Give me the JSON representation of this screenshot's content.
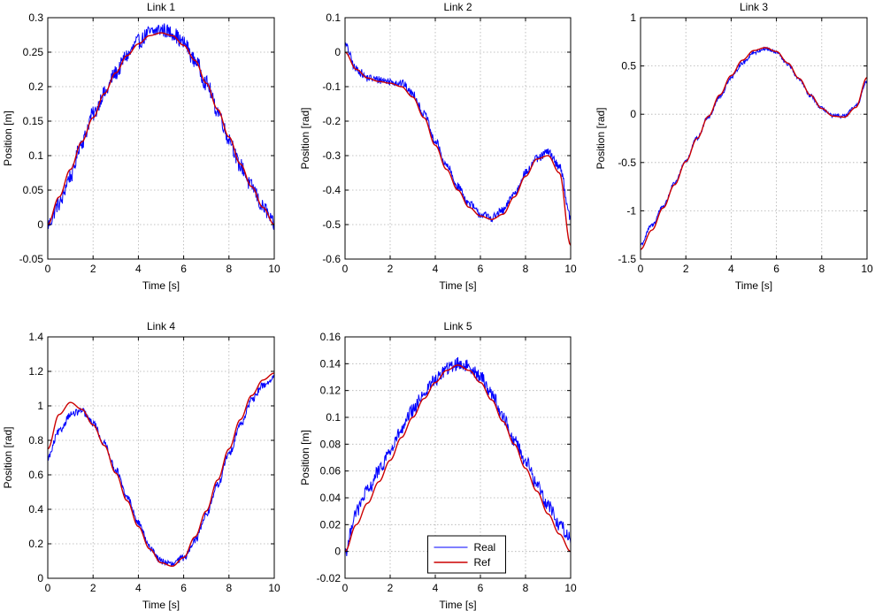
{
  "colors": {
    "real": "#0000ff",
    "ref": "#cc0000",
    "grid": "#b0b0b0"
  },
  "legend": {
    "entries": [
      "Real",
      "Ref"
    ],
    "panel": 4,
    "placement": "bottom-center"
  },
  "chart_data": [
    {
      "type": "line",
      "title": "Link 1",
      "xlabel": "Time [s]",
      "ylabel": "Position [m]",
      "xlim": [
        0,
        10
      ],
      "ylim": [
        -0.05,
        0.3
      ],
      "xticks": [
        0,
        2,
        4,
        6,
        8,
        10
      ],
      "xtick_labels": [
        "0",
        "2",
        "4",
        "6",
        "8",
        "10"
      ],
      "yticks": [
        -0.05,
        0,
        0.05,
        0.1,
        0.15,
        0.2,
        0.25,
        0.3
      ],
      "ytick_labels": [
        "-0.05",
        "0",
        "0.05",
        "0.1",
        "0.15",
        "0.2",
        "0.25",
        "0.3"
      ],
      "grid": true,
      "noise": 0.011,
      "x": [
        0,
        0.5,
        1,
        1.5,
        2,
        2.5,
        3,
        3.5,
        4,
        4.5,
        5,
        5.5,
        6,
        6.5,
        7,
        7.5,
        8,
        8.5,
        9,
        9.5,
        10
      ],
      "series": [
        {
          "name": "Real",
          "values": [
            0.0,
            0.03,
            0.07,
            0.12,
            0.16,
            0.19,
            0.22,
            0.245,
            0.265,
            0.278,
            0.283,
            0.278,
            0.263,
            0.238,
            0.205,
            0.165,
            0.125,
            0.085,
            0.055,
            0.025,
            0.0
          ]
        },
        {
          "name": "Ref",
          "values": [
            0.0,
            0.04,
            0.08,
            0.12,
            0.155,
            0.19,
            0.22,
            0.245,
            0.262,
            0.274,
            0.278,
            0.274,
            0.26,
            0.238,
            0.205,
            0.167,
            0.127,
            0.088,
            0.055,
            0.025,
            0.0
          ]
        }
      ]
    },
    {
      "type": "line",
      "title": "Link 2",
      "xlabel": "Time [s]",
      "ylabel": "Position [rad]",
      "xlim": [
        0,
        10
      ],
      "ylim": [
        -0.6,
        0.1
      ],
      "xticks": [
        0,
        2,
        4,
        6,
        8,
        10
      ],
      "xtick_labels": [
        "0",
        "2",
        "4",
        "6",
        "8",
        "10"
      ],
      "yticks": [
        -0.6,
        -0.5,
        -0.4,
        -0.3,
        -0.2,
        -0.1,
        0,
        0.1
      ],
      "ytick_labels": [
        "-0.6",
        "-0.5",
        "-0.4",
        "-0.3",
        "-0.2",
        "-0.1",
        "0",
        "0.1"
      ],
      "grid": true,
      "noise": 0.012,
      "x": [
        0,
        0.5,
        1,
        1.5,
        2,
        2.5,
        3,
        3.5,
        4,
        4.5,
        5,
        5.5,
        6,
        6.5,
        7,
        7.5,
        8,
        8.5,
        9,
        9.5,
        10
      ],
      "series": [
        {
          "name": "Real",
          "values": [
            0.02,
            -0.05,
            -0.075,
            -0.08,
            -0.085,
            -0.09,
            -0.12,
            -0.18,
            -0.26,
            -0.33,
            -0.39,
            -0.44,
            -0.47,
            -0.48,
            -0.46,
            -0.41,
            -0.35,
            -0.31,
            -0.29,
            -0.33,
            -0.48
          ]
        },
        {
          "name": "Ref",
          "values": [
            0.0,
            -0.05,
            -0.075,
            -0.085,
            -0.09,
            -0.1,
            -0.13,
            -0.19,
            -0.27,
            -0.34,
            -0.4,
            -0.45,
            -0.475,
            -0.485,
            -0.47,
            -0.42,
            -0.36,
            -0.31,
            -0.3,
            -0.35,
            -0.56
          ]
        }
      ]
    },
    {
      "type": "line",
      "title": "Link 3",
      "xlabel": "Time [s]",
      "ylabel": "Position [rad]",
      "xlim": [
        0,
        10
      ],
      "ylim": [
        -1.5,
        1
      ],
      "xticks": [
        0,
        2,
        4,
        6,
        8,
        10
      ],
      "xtick_labels": [
        "0",
        "2",
        "4",
        "6",
        "8",
        "10"
      ],
      "yticks": [
        -1.5,
        -1,
        -0.5,
        0,
        0.5,
        1
      ],
      "ytick_labels": [
        "-1.5",
        "-1",
        "-0.5",
        "0",
        "0.5",
        "1"
      ],
      "grid": true,
      "noise": 0.02,
      "x": [
        0,
        0.5,
        1,
        1.5,
        2,
        2.5,
        3,
        3.5,
        4,
        4.5,
        5,
        5.5,
        6,
        6.5,
        7,
        7.5,
        8,
        8.5,
        9,
        9.5,
        10
      ],
      "series": [
        {
          "name": "Real",
          "values": [
            -1.35,
            -1.15,
            -0.95,
            -0.72,
            -0.48,
            -0.25,
            -0.02,
            0.18,
            0.38,
            0.53,
            0.64,
            0.68,
            0.64,
            0.52,
            0.36,
            0.19,
            0.06,
            -0.02,
            -0.02,
            0.08,
            0.33
          ]
        },
        {
          "name": "Ref",
          "values": [
            -1.4,
            -1.2,
            -0.97,
            -0.73,
            -0.49,
            -0.25,
            -0.02,
            0.2,
            0.4,
            0.56,
            0.66,
            0.69,
            0.65,
            0.53,
            0.37,
            0.2,
            0.06,
            -0.02,
            -0.03,
            0.07,
            0.38
          ]
        }
      ]
    },
    {
      "type": "line",
      "title": "Link 4",
      "xlabel": "Time [s]",
      "ylabel": "Position [rad]",
      "xlim": [
        0,
        10
      ],
      "ylim": [
        0,
        1.4
      ],
      "xticks": [
        0,
        2,
        4,
        6,
        8,
        10
      ],
      "xtick_labels": [
        "0",
        "2",
        "4",
        "6",
        "8",
        "10"
      ],
      "yticks": [
        0,
        0.2,
        0.4,
        0.6,
        0.8,
        1,
        1.2,
        1.4
      ],
      "ytick_labels": [
        "0",
        "0.2",
        "0.4",
        "0.6",
        "0.8",
        "1",
        "1.2",
        "1.4"
      ],
      "grid": true,
      "noise": 0.02,
      "x": [
        0,
        0.5,
        1,
        1.5,
        2,
        2.5,
        3,
        3.5,
        4,
        4.5,
        5,
        5.5,
        6,
        6.5,
        7,
        7.5,
        8,
        8.5,
        9,
        9.5,
        10
      ],
      "series": [
        {
          "name": "Real",
          "values": [
            0.7,
            0.85,
            0.95,
            0.97,
            0.9,
            0.78,
            0.63,
            0.47,
            0.32,
            0.18,
            0.1,
            0.08,
            0.12,
            0.22,
            0.37,
            0.54,
            0.72,
            0.89,
            1.03,
            1.12,
            1.16
          ]
        },
        {
          "name": "Ref",
          "values": [
            0.75,
            0.95,
            1.02,
            0.98,
            0.89,
            0.77,
            0.61,
            0.45,
            0.3,
            0.17,
            0.09,
            0.07,
            0.12,
            0.24,
            0.39,
            0.57,
            0.75,
            0.92,
            1.06,
            1.15,
            1.19
          ]
        }
      ]
    },
    {
      "type": "line",
      "title": "Link 5",
      "xlabel": "Time [s]",
      "ylabel": "Position [m]",
      "xlim": [
        0,
        10
      ],
      "ylim": [
        -0.02,
        0.16
      ],
      "xticks": [
        0,
        2,
        4,
        6,
        8,
        10
      ],
      "xtick_labels": [
        "0",
        "2",
        "4",
        "6",
        "8",
        "10"
      ],
      "yticks": [
        -0.02,
        0,
        0.02,
        0.04,
        0.06,
        0.08,
        0.1,
        0.12,
        0.14,
        0.16
      ],
      "ytick_labels": [
        "-0.02",
        "0",
        "0.02",
        "0.04",
        "0.06",
        "0.08",
        "0.1",
        "0.12",
        "0.14",
        "0.16"
      ],
      "grid": true,
      "noise": 0.005,
      "x": [
        0,
        0.5,
        1,
        1.5,
        2,
        2.5,
        3,
        3.5,
        4,
        4.5,
        5,
        5.5,
        6,
        6.5,
        7,
        7.5,
        8,
        8.5,
        9,
        9.5,
        10
      ],
      "series": [
        {
          "name": "Real",
          "values": [
            0.0,
            0.03,
            0.045,
            0.06,
            0.075,
            0.09,
            0.105,
            0.118,
            0.128,
            0.136,
            0.14,
            0.138,
            0.13,
            0.118,
            0.1,
            0.083,
            0.068,
            0.05,
            0.035,
            0.02,
            0.01
          ]
        },
        {
          "name": "Ref",
          "values": [
            0.0,
            0.02,
            0.036,
            0.052,
            0.068,
            0.085,
            0.1,
            0.114,
            0.126,
            0.135,
            0.139,
            0.135,
            0.126,
            0.113,
            0.097,
            0.08,
            0.062,
            0.045,
            0.028,
            0.013,
            0.0
          ]
        }
      ]
    }
  ]
}
